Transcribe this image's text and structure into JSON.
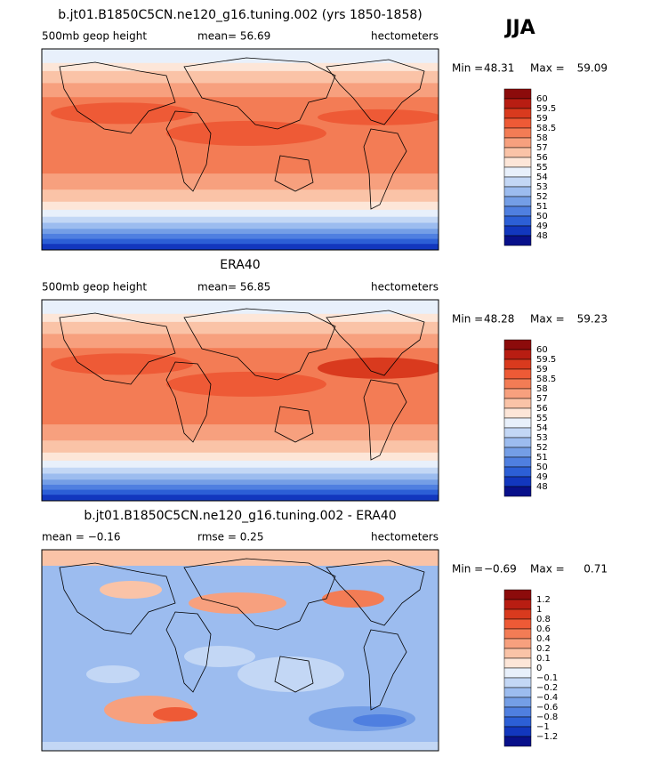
{
  "season": "JJA",
  "panels": [
    {
      "title": "b.jt01.B1850C5CN.ne120_g16.tuning.002 (yrs 1850-1858)",
      "left_label": "500mb geop height",
      "middle_label": "mean=  56.69",
      "units": "hectometers",
      "min_label": "Min =",
      "min": "48.31",
      "max_label": "Max =",
      "max": "59.09",
      "colorbar": [
        "60",
        "59.5",
        "59",
        "58.5",
        "58",
        "57",
        "56",
        "55",
        "54",
        "53",
        "52",
        "51",
        "50",
        "49",
        "48"
      ]
    },
    {
      "title": "ERA40",
      "left_label": "500mb geop height",
      "middle_label": "mean=  56.85",
      "units": "hectometers",
      "min_label": "Min =",
      "min": "48.28",
      "max_label": "Max =",
      "max": "59.23",
      "colorbar": [
        "60",
        "59.5",
        "59",
        "58.5",
        "58",
        "57",
        "56",
        "55",
        "54",
        "53",
        "52",
        "51",
        "50",
        "49",
        "48"
      ]
    },
    {
      "title": "b.jt01.B1850C5CN.ne120_g16.tuning.002 - ERA40",
      "left_label": "mean =  −0.16",
      "middle_label": "rmse =    0.25",
      "units": "hectometers",
      "min_label": "Min =",
      "min": "−0.69",
      "max_label": "Max =",
      "max": "0.71",
      "colorbar": [
        "1.2",
        "1",
        "0.8",
        "0.6",
        "0.4",
        "0.2",
        "0.1",
        "0",
        "−0.1",
        "−0.2",
        "−0.4",
        "−0.6",
        "−0.8",
        "−1",
        "−1.2"
      ]
    }
  ],
  "colors": [
    "#8c0b0b",
    "#b81d12",
    "#d93a1e",
    "#ee5a36",
    "#f37c55",
    "#f7a07e",
    "#fac3a7",
    "#fde6d8",
    "#e8f0fb",
    "#c3d7f5",
    "#9cbcef",
    "#749ee6",
    "#4f7fe0",
    "#2c5fd6",
    "#1237be",
    "#08108a"
  ]
}
